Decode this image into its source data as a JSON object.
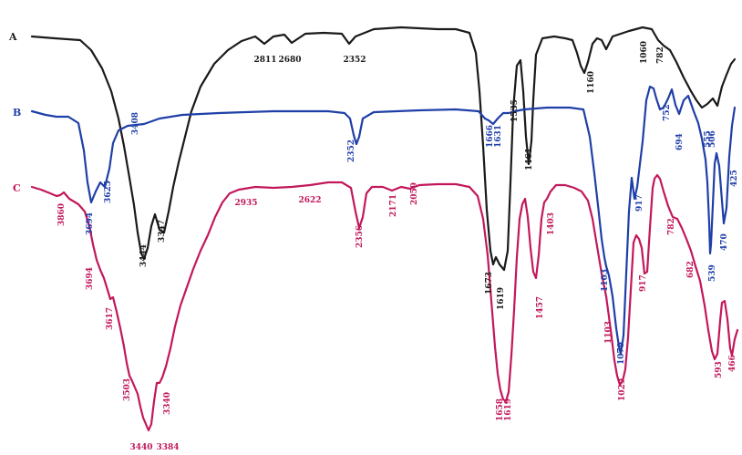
{
  "chart_data": {
    "type": "line",
    "title": "",
    "xlabel": "",
    "ylabel": "",
    "series": [
      {
        "name": "A",
        "color": "#1a1a1a",
        "peaks": [
          "2811",
          "2680",
          "2352",
          "1160",
          "1060",
          "782",
          "3444",
          "3347",
          "1673",
          "1619",
          "1535",
          "1461"
        ]
      },
      {
        "name": "B",
        "color": "#1f3fa8",
        "peaks": [
          "3694",
          "3625",
          "3408",
          "2352",
          "1666",
          "1631",
          "1103",
          "1079",
          "917",
          "752",
          "694",
          "555",
          "506",
          "539",
          "470",
          "425"
        ]
      },
      {
        "name": "C",
        "color": "#c2185b",
        "peaks": [
          "3860",
          "3694",
          "3617",
          "3503",
          "3440",
          "3384",
          "3340",
          "2935",
          "2622",
          "2356",
          "2171",
          "2059",
          "1658",
          "1619",
          "1457",
          "1403",
          "1103",
          "1029",
          "917",
          "782",
          "682",
          "593",
          "466"
        ]
      }
    ]
  }
}
